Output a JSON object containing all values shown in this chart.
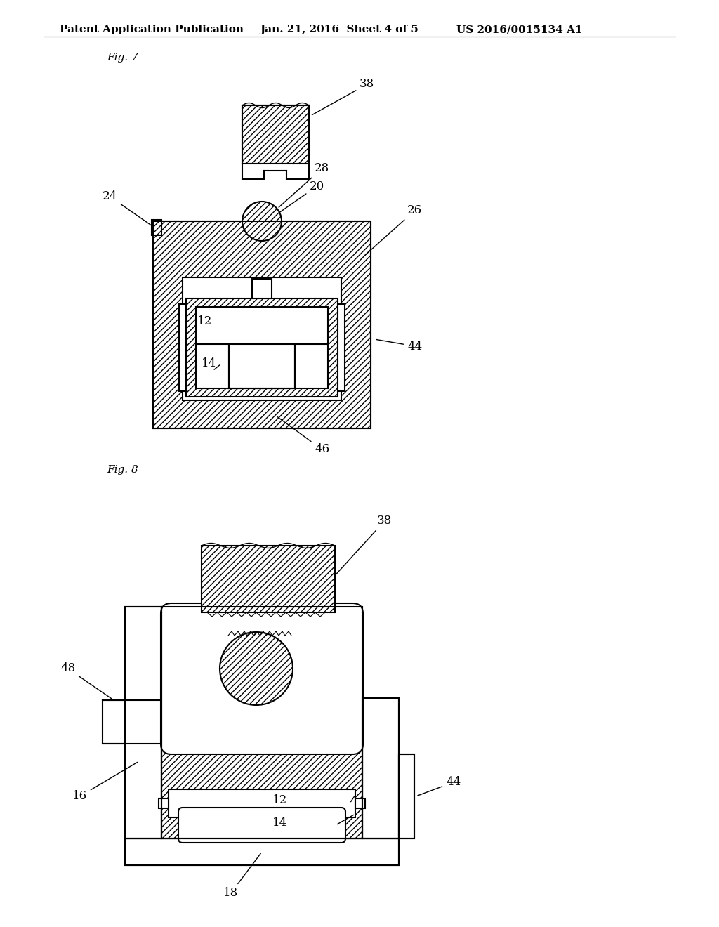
{
  "header_left": "Patent Application Publication",
  "header_mid": "Jan. 21, 2016  Sheet 4 of 5",
  "header_right": "US 2016/0015134 A1",
  "fig7_label": "Fig. 7",
  "fig8_label": "Fig. 8",
  "bg": "#ffffff",
  "lc": "#000000",
  "lw": 1.5,
  "fs": 12,
  "fsh": 11
}
